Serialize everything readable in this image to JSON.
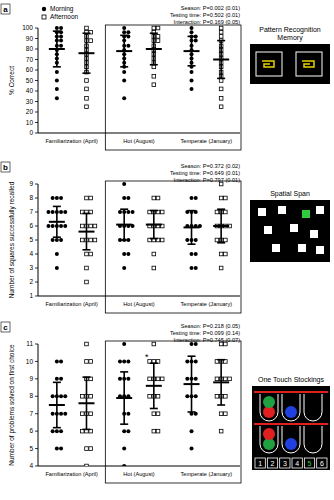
{
  "chart_data": [
    {
      "type": "dot",
      "panel_label": "a",
      "title": "Pattern Recognition Memory",
      "y_label": "% Correct",
      "categories": [
        "Familiarization (April)",
        "Hot (August)",
        "Temperate (January)"
      ],
      "ylim": [
        0,
        100
      ],
      "yticks": [
        0,
        10,
        20,
        30,
        40,
        50,
        60,
        70,
        80,
        90,
        100
      ],
      "legend": "top-left",
      "annotations": [
        "Season: P=0.002 (0.01)",
        "Testing time: P=0.502 (0.01)",
        "Interaction: P=0.169 (0.05)"
      ],
      "series": [
        {
          "name": "Morning",
          "color": "#000000",
          "marker": "circle",
          "values": [
            [
              100,
              100,
              96,
              96,
              92,
              92,
              88,
              88,
              83,
              83,
              79,
              75,
              71,
              67,
              58,
              50,
              42,
              33
            ],
            [
              100,
              96,
              96,
              92,
              92,
              88,
              83,
              83,
              79,
              75,
              71,
              67,
              63,
              58,
              50,
              33
            ],
            [
              100,
              96,
              92,
              92,
              88,
              88,
              83,
              79,
              75,
              71,
              67,
              63,
              58,
              50,
              42
            ]
          ],
          "means": [
            80,
            78,
            78
          ],
          "errors": [
            17,
            15,
            14
          ]
        },
        {
          "name": "Afternoon",
          "color": "#000000",
          "marker": "square",
          "values": [
            [
              100,
              96,
              96,
              92,
              88,
              88,
              83,
              79,
              75,
              71,
              67,
              63,
              58,
              50,
              42,
              33,
              25
            ],
            [
              100,
              100,
              96,
              92,
              92,
              88,
              88,
              83,
              79,
              75,
              71,
              67,
              63,
              54,
              46
            ],
            [
              100,
              96,
              92,
              88,
              83,
              79,
              75,
              71,
              67,
              63,
              58,
              54,
              50,
              42,
              33,
              25
            ]
          ],
          "means": [
            76,
            80,
            70
          ],
          "errors": [
            19,
            15,
            18
          ]
        }
      ]
    },
    {
      "type": "dot",
      "panel_label": "b",
      "title": "Spatial Span",
      "y_label": "Number of squares successfully recalled",
      "categories": [
        "Familiarization (April)",
        "Hot (August)",
        "Temperate (January)"
      ],
      "ylim": [
        1,
        9
      ],
      "yticks": [
        1,
        2,
        3,
        4,
        5,
        6,
        7,
        8,
        9
      ],
      "annotations": [
        "Season: P=0.372 (0.02)",
        "Testing time: P=0.649 (0.01)",
        "Interaction: P=0.797 (0.01)"
      ],
      "series": [
        {
          "name": "Morning",
          "color": "#000000",
          "marker": "circle",
          "values": [
            [
              8,
              8,
              8,
              7,
              7,
              7,
              7,
              7,
              6,
              6,
              6,
              6,
              6,
              5,
              5,
              5,
              4,
              3
            ],
            [
              9,
              8,
              8,
              7,
              7,
              7,
              7,
              6,
              6,
              6,
              6,
              5,
              5,
              5,
              4,
              4,
              3
            ],
            [
              8,
              8,
              7,
              7,
              7,
              6,
              6,
              6,
              6,
              5,
              5,
              5,
              4,
              4,
              3,
              3
            ]
          ],
          "means": [
            6.3,
            6.1,
            5.9
          ],
          "errors": [
            1.1,
            1.1,
            1.2
          ]
        },
        {
          "name": "Afternoon",
          "color": "#000000",
          "marker": "square",
          "values": [
            [
              8,
              8,
              7,
              7,
              7,
              6,
              6,
              6,
              6,
              5,
              5,
              5,
              5,
              4,
              4,
              3,
              2
            ],
            [
              8,
              8,
              7,
              7,
              7,
              7,
              6,
              6,
              6,
              6,
              5,
              5,
              5,
              5,
              4,
              3
            ],
            [
              9,
              8,
              8,
              7,
              7,
              7,
              6,
              6,
              6,
              6,
              5,
              5,
              5,
              4,
              4,
              3
            ]
          ],
          "means": [
            5.6,
            6.1,
            6.0
          ],
          "errors": [
            1.3,
            1.0,
            1.2
          ]
        }
      ]
    },
    {
      "type": "dot",
      "panel_label": "c",
      "title": "One Touch Stockings",
      "y_label": "Number of problems solved on first choice",
      "categories": [
        "Familiarization (April)",
        "Hot (August)",
        "Temperate (January)"
      ],
      "ylim": [
        4,
        11
      ],
      "yticks": [
        4,
        5,
        6,
        7,
        8,
        9,
        10,
        11
      ],
      "annotations": [
        "Season: P=0.218 (0.05)",
        "Testing time: P=0.099 (0.14)",
        "Interaction: P=0.745 (0.07)"
      ],
      "icon_labels": [
        "1",
        "2",
        "3",
        "4",
        "5",
        "6"
      ],
      "series": [
        {
          "name": "Morning",
          "color": "#000000",
          "marker": "circle",
          "values": [
            [
              10,
              10,
              9,
              9,
              8,
              8,
              8,
              8,
              7,
              7,
              7,
              7,
              6,
              6,
              6,
              5,
              5
            ],
            [
              11,
              10,
              10,
              10,
              9,
              9,
              9,
              8,
              8,
              8,
              7,
              7,
              6,
              6,
              5,
              4
            ],
            [
              11,
              11,
              10,
              10,
              10,
              9,
              9,
              9,
              8,
              8,
              8,
              7,
              7,
              6,
              5
            ]
          ],
          "means": [
            7.5,
            7.9,
            8.7
          ],
          "errors": [
            1.3,
            1.5,
            1.6
          ]
        },
        {
          "name": "Afternoon",
          "color": "#000000",
          "marker": "square",
          "values": [
            [
              11,
              10,
              10,
              9,
              9,
              8,
              8,
              8,
              7,
              7,
              7,
              6,
              6,
              6,
              5,
              5,
              4
            ],
            [
              11,
              10,
              10,
              10,
              9,
              9,
              9,
              9,
              8,
              8,
              8,
              7,
              7,
              6,
              6
            ],
            [
              11,
              11,
              10,
              10,
              10,
              9,
              9,
              9,
              9,
              8,
              8,
              8,
              7,
              7,
              6
            ]
          ],
          "means": [
            7.6,
            8.6,
            8.8
          ],
          "errors": [
            1.5,
            1.3,
            1.3
          ],
          "significance": [
            null,
            "*",
            null
          ]
        }
      ]
    }
  ]
}
